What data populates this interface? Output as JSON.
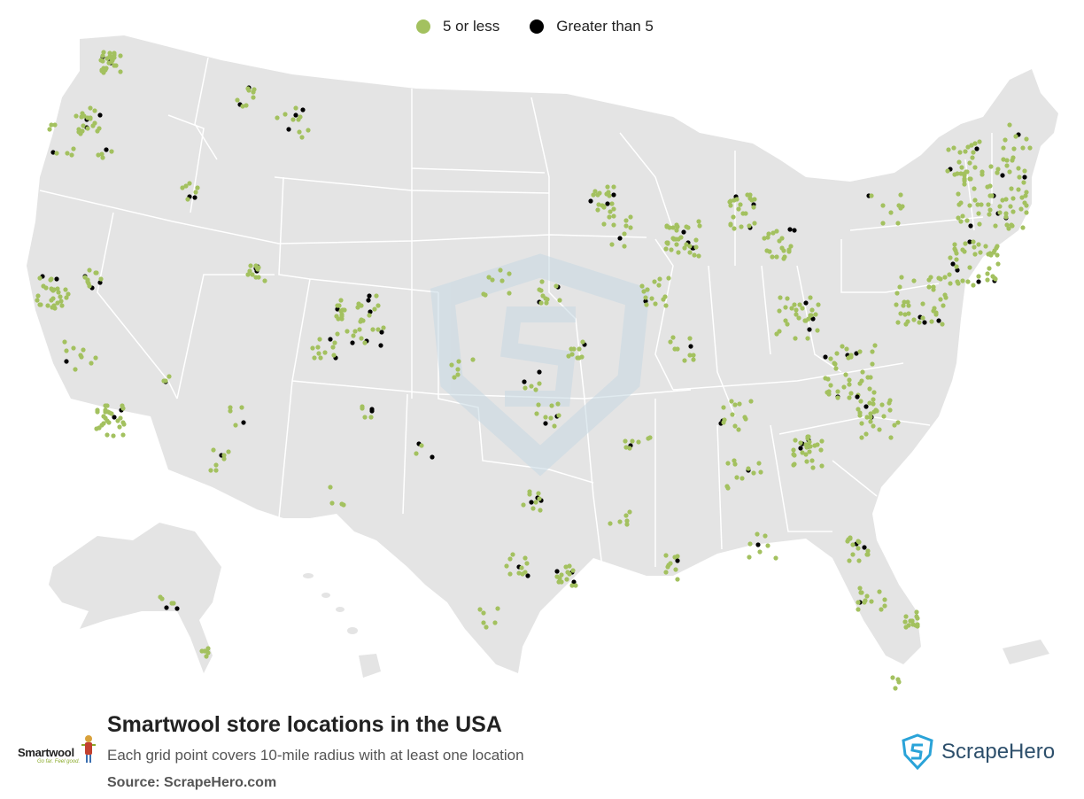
{
  "title": "Smartwool store locations in the USA",
  "subtitle": "Each grid point covers 10-mile radius with at least one location",
  "source": "Source: ScrapeHero.com",
  "brand": {
    "name": "Smartwool",
    "tagline": "Go far. Feel good."
  },
  "publisher": {
    "name": "ScrapeHero"
  },
  "legend": {
    "items": [
      {
        "label": "5 or less",
        "color": "#a3c15f"
      },
      {
        "label": "Greater than 5",
        "color": "#000000"
      }
    ]
  },
  "colors": {
    "land": "#e4e4e4",
    "borders": "#ffffff",
    "low": "#a3c15f",
    "high": "#000000",
    "watermark": "#c7d9e3"
  },
  "regions": [
    "Contiguous United States",
    "Alaska",
    "Hawaii",
    "Puerto Rico"
  ]
}
